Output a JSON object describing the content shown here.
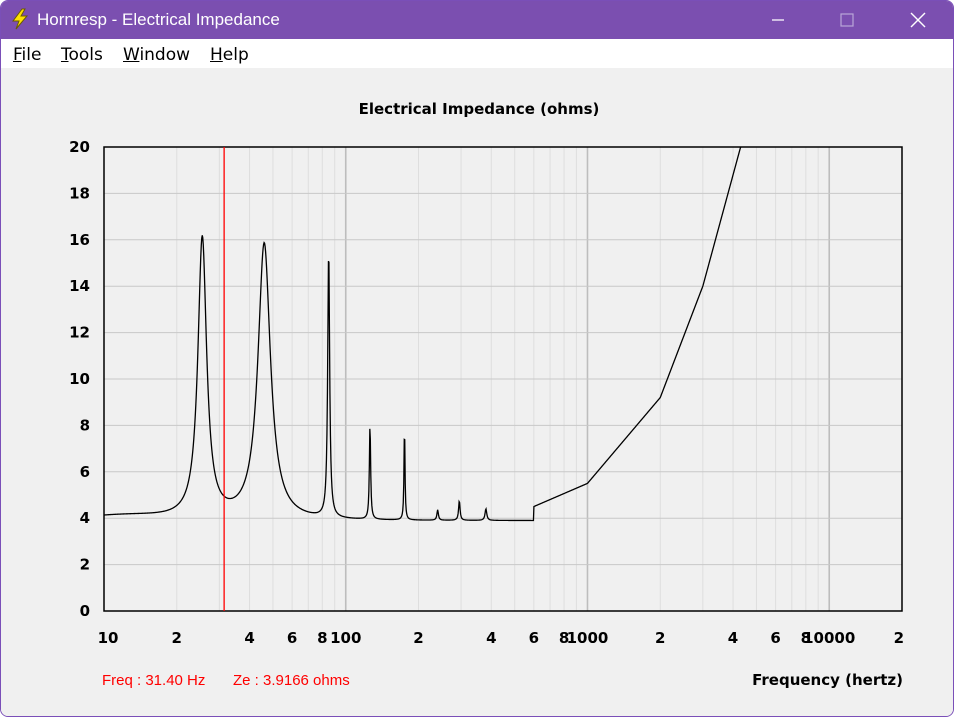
{
  "window": {
    "title": "Hornresp - Electrical Impedance",
    "controls": {
      "minimize": "minimize",
      "maximize": "maximize",
      "close": "close"
    }
  },
  "menu": [
    {
      "label": "File",
      "underline": "F",
      "rest": "ile"
    },
    {
      "label": "Tools",
      "underline": "T",
      "rest": "ools"
    },
    {
      "label": "Window",
      "underline": "W",
      "rest": "indow"
    },
    {
      "label": "Help",
      "underline": "H",
      "rest": "elp"
    }
  ],
  "status": {
    "freq_text": "Freq : 31.40 Hz",
    "ze_text": "Ze : 3.9166 ohms"
  },
  "colors": {
    "curve": "#000000",
    "cursor": "#ff0000",
    "grid": "#c8c8c8",
    "titlebar": "#7b4fb0",
    "readout": "#ff0000"
  },
  "chart_data": {
    "type": "line",
    "title": "Electrical Impedance (ohms)",
    "xlabel": "Frequency (hertz)",
    "ylabel": "",
    "x_scale": "log",
    "xlim": [
      10,
      20000
    ],
    "ylim": [
      0,
      20
    ],
    "y_ticks": [
      0,
      2,
      4,
      6,
      8,
      10,
      12,
      14,
      16,
      18,
      20
    ],
    "x_tick_labels": [
      {
        "value": 10,
        "label": "10"
      },
      {
        "value": 20,
        "label": "2"
      },
      {
        "value": 40,
        "label": "4"
      },
      {
        "value": 60,
        "label": "6"
      },
      {
        "value": 80,
        "label": "8"
      },
      {
        "value": 100,
        "label": "100"
      },
      {
        "value": 200,
        "label": "2"
      },
      {
        "value": 400,
        "label": "4"
      },
      {
        "value": 600,
        "label": "6"
      },
      {
        "value": 800,
        "label": "8"
      },
      {
        "value": 1000,
        "label": "1000"
      },
      {
        "value": 2000,
        "label": "2"
      },
      {
        "value": 4000,
        "label": "4"
      },
      {
        "value": 6000,
        "label": "6"
      },
      {
        "value": 8000,
        "label": "8"
      },
      {
        "value": 10000,
        "label": "10000"
      },
      {
        "value": 20000,
        "label": "2"
      }
    ],
    "grid": true,
    "cursor_x": 31.4,
    "cursor_y": 3.9166,
    "series": [
      {
        "name": "Ze",
        "base_re": 3.9,
        "resonances": [
          {
            "f": 25.5,
            "peak": 16.0,
            "q": 10
          },
          {
            "f": 46.0,
            "peak": 15.8,
            "q": 7
          },
          {
            "f": 85.0,
            "peak": 15.4,
            "q": 45
          },
          {
            "f": 126.0,
            "peak": 8.0,
            "q": 70
          },
          {
            "f": 175.0,
            "peak": 8.0,
            "q": 90
          },
          {
            "f": 240.0,
            "peak": 4.35,
            "q": 60
          },
          {
            "f": 295.0,
            "peak": 4.75,
            "q": 60
          },
          {
            "f": 380.0,
            "peak": 4.4,
            "q": 50
          }
        ],
        "inductive_points": [
          {
            "f": 600,
            "z": 4.5
          },
          {
            "f": 1000,
            "z": 5.5
          },
          {
            "f": 2000,
            "z": 9.2
          },
          {
            "f": 3000,
            "z": 14.0
          },
          {
            "f": 4300,
            "z": 20.0
          }
        ]
      }
    ]
  }
}
